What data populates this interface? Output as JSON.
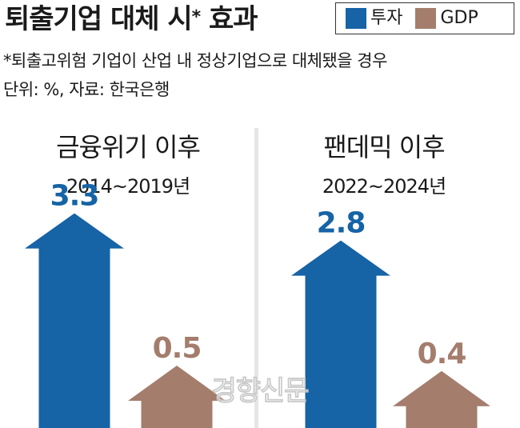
{
  "title": "퇴출기업 대체 시",
  "title_mark": "*",
  "title_suffix": "효과",
  "legend": [
    {
      "label": "투자",
      "color": "#1663a6"
    },
    {
      "label": "GDP",
      "color": "#a47d6d"
    }
  ],
  "note_line1": "*퇴출고위험 기업이 산업 내 정상기업으로 대체됐을 경우",
  "note_line2": "단위: %, 자료: 한국은행",
  "watermark": "경향신문",
  "chart_data": {
    "type": "bar",
    "unit": "%",
    "groups": [
      {
        "title": "금융위기 이후",
        "period": "2014~2019년"
      },
      {
        "title": "팬데믹 이후",
        "period": "2022~2024년"
      }
    ],
    "series": [
      {
        "name": "투자",
        "color": "#1663a6",
        "values": [
          3.3,
          2.8
        ]
      },
      {
        "name": "GDP",
        "color": "#a47d6d",
        "values": [
          0.5,
          0.4
        ]
      }
    ]
  }
}
